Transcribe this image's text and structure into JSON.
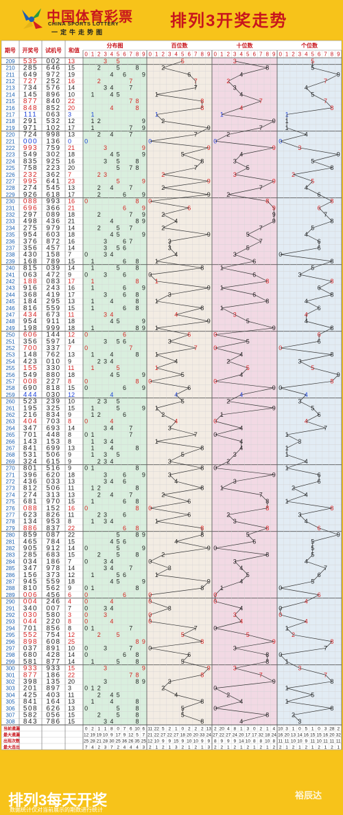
{
  "header": {
    "brand_cn": "中国体育彩票",
    "brand_en": "CHINA SPORTS LOTTERY",
    "slogan": "一定牛走势图",
    "title": "排列3开奖走势"
  },
  "footer": {
    "title": "排列3每天开奖",
    "subtitle": "数据统计仅对当前展示的期数进行统计",
    "watermark": "裕辰达"
  },
  "colors": {
    "background": "#f7c31a",
    "red": "#d42020",
    "blue": "#1a3fd6",
    "dist_bg": "#d9efde",
    "hundreds_bg": "#f3ece3",
    "tens_bg": "#f2d9e4",
    "units_bg": "#e2ecf4"
  },
  "chart_data": {
    "type": "table",
    "columns": {
      "period": "期号",
      "draw": "开奖号",
      "test": "试机号",
      "sum": "和值",
      "distribution": "分布图",
      "hundreds": "百位数",
      "tens": "十位数",
      "units": "个位数"
    },
    "digits": [
      "0",
      "1",
      "2",
      "3",
      "4",
      "5",
      "6",
      "7",
      "8",
      "9"
    ],
    "draws": [
      [
        "209",
        "535",
        "002"
      ],
      [
        "210",
        "285",
        "646"
      ],
      [
        "211",
        "649",
        "972"
      ],
      [
        "212",
        "727",
        "252"
      ],
      [
        "213",
        "734",
        "576"
      ],
      [
        "214",
        "145",
        "896"
      ],
      [
        "215",
        "877",
        "840"
      ],
      [
        "216",
        "848",
        "852"
      ],
      [
        "217",
        "111",
        "063"
      ],
      [
        "218",
        "291",
        "532"
      ],
      [
        "219",
        "971",
        "102"
      ],
      [
        "220",
        "724",
        "998"
      ],
      [
        "221",
        "000",
        "136"
      ],
      [
        "222",
        "993",
        "759"
      ],
      [
        "223",
        "549",
        "302"
      ],
      [
        "224",
        "835",
        "925"
      ],
      [
        "225",
        "758",
        "223"
      ],
      [
        "226",
        "232",
        "362"
      ],
      [
        "227",
        "995",
        "641"
      ],
      [
        "228",
        "274",
        "545"
      ],
      [
        "229",
        "926",
        "618"
      ],
      [
        "230",
        "088",
        "993"
      ],
      [
        "231",
        "696",
        "366"
      ],
      [
        "232",
        "297",
        "089"
      ],
      [
        "233",
        "498",
        "436"
      ],
      [
        "234",
        "275",
        "979"
      ],
      [
        "235",
        "954",
        "603"
      ],
      [
        "236",
        "376",
        "872"
      ],
      [
        "237",
        "356",
        "457"
      ],
      [
        "238",
        "430",
        "158"
      ],
      [
        "239",
        "168",
        "789"
      ],
      [
        "240",
        "815",
        "039"
      ],
      [
        "241",
        "063",
        "472"
      ],
      [
        "242",
        "188",
        "083"
      ],
      [
        "243",
        "916",
        "243"
      ],
      [
        "244",
        "368",
        "419"
      ],
      [
        "245",
        "184",
        "295"
      ],
      [
        "246",
        "816",
        "559"
      ],
      [
        "247",
        "434",
        "673"
      ],
      [
        "248",
        "954",
        "911"
      ],
      [
        "249",
        "198",
        "999"
      ],
      [
        "250",
        "606",
        "144"
      ],
      [
        "251",
        "356",
        "597"
      ],
      [
        "252",
        "700",
        "337"
      ],
      [
        "253",
        "148",
        "762"
      ],
      [
        "254",
        "423",
        "010"
      ],
      [
        "255",
        "155",
        "330"
      ],
      [
        "256",
        "549",
        "880"
      ],
      [
        "257",
        "008",
        "227"
      ],
      [
        "258",
        "690",
        "818"
      ],
      [
        "259",
        "444",
        "030"
      ],
      [
        "260",
        "523",
        "239"
      ],
      [
        "261",
        "195",
        "325"
      ],
      [
        "262",
        "216",
        "834"
      ],
      [
        "263",
        "404",
        "703"
      ],
      [
        "264",
        "347",
        "693"
      ],
      [
        "265",
        "701",
        "448"
      ],
      [
        "266",
        "143",
        "153"
      ],
      [
        "267",
        "841",
        "699"
      ],
      [
        "268",
        "531",
        "506"
      ],
      [
        "269",
        "324",
        "615"
      ],
      [
        "270",
        "801",
        "516"
      ],
      [
        "271",
        "396",
        "620"
      ],
      [
        "272",
        "436",
        "033"
      ],
      [
        "273",
        "812",
        "506"
      ],
      [
        "274",
        "274",
        "313"
      ],
      [
        "275",
        "681",
        "970"
      ],
      [
        "276",
        "088",
        "152"
      ],
      [
        "277",
        "623",
        "826"
      ],
      [
        "278",
        "134",
        "953"
      ],
      [
        "279",
        "886",
        "837"
      ],
      [
        "280",
        "859",
        "087"
      ],
      [
        "281",
        "465",
        "784"
      ],
      [
        "282",
        "905",
        "912"
      ],
      [
        "283",
        "285",
        "683"
      ],
      [
        "284",
        "034",
        "186"
      ],
      [
        "285",
        "347",
        "978"
      ],
      [
        "286",
        "156",
        "373"
      ],
      [
        "287",
        "945",
        "559"
      ],
      [
        "288",
        "810",
        "562"
      ],
      [
        "289",
        "006",
        "456"
      ],
      [
        "290",
        "004",
        "246"
      ],
      [
        "291",
        "340",
        "007"
      ],
      [
        "292",
        "030",
        "580"
      ],
      [
        "293",
        "044",
        "220"
      ],
      [
        "294",
        "701",
        "856"
      ],
      [
        "295",
        "552",
        "754"
      ],
      [
        "296",
        "898",
        "608"
      ],
      [
        "297",
        "037",
        "891"
      ],
      [
        "298",
        "680",
        "428"
      ],
      [
        "299",
        "581",
        "877"
      ],
      [
        "300",
        "933",
        "933"
      ],
      [
        "301",
        "877",
        "186"
      ],
      [
        "302",
        "398",
        "135"
      ],
      [
        "303",
        "201",
        "897"
      ],
      [
        "304",
        "425",
        "403"
      ],
      [
        "305",
        "841",
        "164"
      ],
      [
        "306",
        "508",
        "626"
      ],
      [
        "307",
        "582",
        "056"
      ],
      [
        "308",
        "843",
        "786"
      ]
    ],
    "stats": [
      {
        "label": "当前遗漏",
        "values": [
          [
            "0",
            "2",
            "1",
            "1",
            "8",
            "0",
            "7",
            "6",
            "10",
            "6"
          ],
          [
            "11",
            "22",
            "5",
            "2",
            "1",
            "0",
            "2",
            "2",
            "2",
            "13"
          ],
          [
            "2",
            "20",
            "4",
            "8",
            "1",
            "3",
            "0",
            "2",
            "1",
            "4"
          ],
          [
            "10",
            "3",
            "1",
            "0",
            "5",
            "1",
            "0",
            "3",
            "28",
            "2"
          ]
        ]
      },
      {
        "label": "最大遗漏",
        "values": [
          [
            "12",
            "19",
            "19",
            "10",
            "9",
            "17",
            "9",
            "12",
            "5",
            "7"
          ],
          [
            "21",
            "22",
            "27",
            "22",
            "27",
            "18",
            "20",
            "20",
            "33",
            "24"
          ],
          [
            "27",
            "22",
            "27",
            "24",
            "20",
            "17",
            "17",
            "32",
            "18",
            "24"
          ],
          [
            "16",
            "20",
            "13",
            "14",
            "16",
            "15",
            "15",
            "16",
            "20",
            "32"
          ]
        ]
      },
      {
        "label": "出现次数",
        "values": [
          [
            "25",
            "28",
            "21",
            "28",
            "30",
            "25",
            "36",
            "26",
            "35",
            "25"
          ],
          [
            "12",
            "10",
            "9",
            "9",
            "15",
            "9",
            "10",
            "10",
            "9",
            "9"
          ],
          [
            "8",
            "9",
            "9",
            "9",
            "14",
            "10",
            "8",
            "8",
            "10",
            "8"
          ],
          [
            "11",
            "11",
            "10",
            "10",
            "9",
            "11",
            "10",
            "11",
            "11",
            "11"
          ]
        ]
      },
      {
        "label": "最大连出",
        "values": [
          [
            "7",
            "4",
            "2",
            "3",
            "7",
            "2",
            "4",
            "4",
            "4",
            "3"
          ],
          [
            "2",
            "1",
            "2",
            "1",
            "3",
            "2",
            "1",
            "2",
            "1",
            "3"
          ],
          [
            "2",
            "2",
            "1",
            "2",
            "1",
            "2",
            "1",
            "2",
            "1",
            "2"
          ],
          [
            "2",
            "1",
            "2",
            "1",
            "2",
            "1",
            "2",
            "1",
            "2",
            "1"
          ]
        ]
      }
    ]
  }
}
